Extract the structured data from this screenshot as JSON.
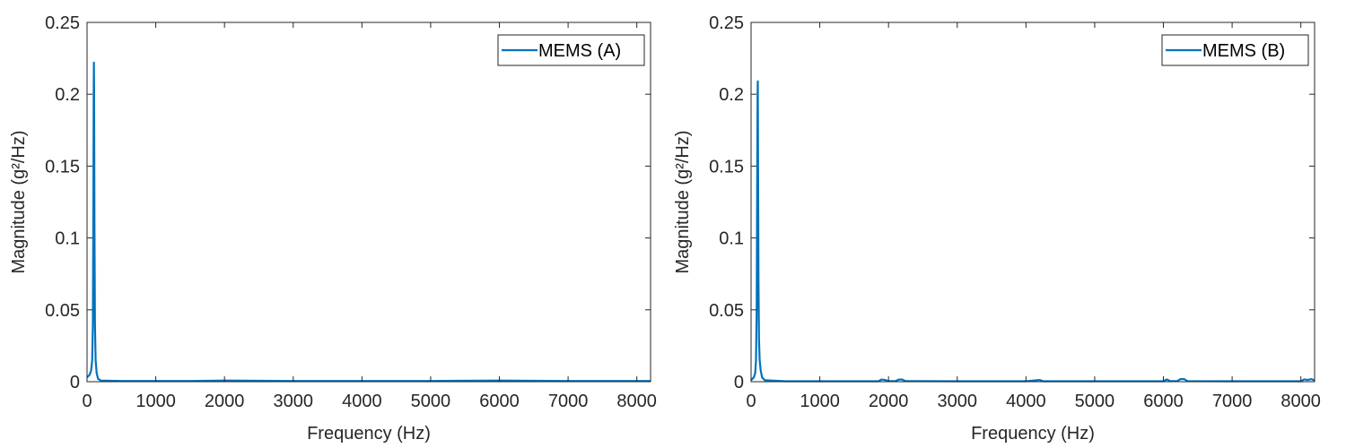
{
  "figure": {
    "background": "#ffffff",
    "series_color": "#0072BD",
    "axis_color": "#262626"
  },
  "chart_data": [
    {
      "type": "line",
      "xlabel": "Frequency (Hz)",
      "ylabel": "Magnitude (g²/Hz)",
      "xlim": [
        0,
        8200
      ],
      "ylim": [
        0,
        0.25
      ],
      "x_ticks": [
        0,
        1000,
        2000,
        3000,
        4000,
        5000,
        6000,
        7000,
        8000
      ],
      "y_ticks": [
        0,
        0.05,
        0.1,
        0.15,
        0.2,
        0.25
      ],
      "x_tick_labels": [
        "0",
        "1000",
        "2000",
        "3000",
        "4000",
        "5000",
        "6000",
        "7000",
        "8000"
      ],
      "y_tick_labels": [
        "0",
        "0.05",
        "0.1",
        "0.15",
        "0.2",
        "0.25"
      ],
      "grid": false,
      "legend_position": "top-right",
      "series": [
        {
          "name": "MEMS (A)",
          "x": [
            0,
            20,
            40,
            60,
            75,
            85,
            92,
            97,
            100,
            103,
            108,
            115,
            125,
            140,
            160,
            200,
            500,
            1000,
            1500,
            2000,
            3000,
            4000,
            5000,
            6000,
            7000,
            8000,
            8200
          ],
          "y": [
            0.003,
            0.004,
            0.005,
            0.008,
            0.015,
            0.04,
            0.12,
            0.2,
            0.222,
            0.2,
            0.11,
            0.04,
            0.015,
            0.006,
            0.002,
            0.0008,
            0.0005,
            0.0005,
            0.0005,
            0.0008,
            0.0005,
            0.0005,
            0.0005,
            0.0008,
            0.0005,
            0.0005,
            0.0005
          ]
        }
      ]
    },
    {
      "type": "line",
      "xlabel": "Frequency (Hz)",
      "ylabel": "Magnitude (g²/Hz)",
      "xlim": [
        0,
        8200
      ],
      "ylim": [
        0,
        0.25
      ],
      "x_ticks": [
        0,
        1000,
        2000,
        3000,
        4000,
        5000,
        6000,
        7000,
        8000
      ],
      "y_ticks": [
        0,
        0.05,
        0.1,
        0.15,
        0.2,
        0.25
      ],
      "x_tick_labels": [
        "0",
        "1000",
        "2000",
        "3000",
        "4000",
        "5000",
        "6000",
        "7000",
        "8000"
      ],
      "y_tick_labels": [
        "0",
        "0.05",
        "0.1",
        "0.15",
        "0.2",
        "0.25"
      ],
      "grid": false,
      "legend_position": "top-right",
      "series": [
        {
          "name": "MEMS (B)",
          "x": [
            0,
            20,
            40,
            60,
            72,
            82,
            90,
            95,
            98,
            102,
            108,
            115,
            125,
            140,
            160,
            200,
            500,
            1000,
            1500,
            1850,
            1900,
            1950,
            2000,
            2100,
            2150,
            2200,
            2250,
            3000,
            4000,
            4200,
            4250,
            5000,
            6000,
            6050,
            6100,
            6200,
            6250,
            6300,
            6350,
            7000,
            7500,
            8000,
            8050,
            8100,
            8150,
            8200
          ],
          "y": [
            0.001,
            0.002,
            0.003,
            0.006,
            0.015,
            0.05,
            0.15,
            0.2,
            0.209,
            0.15,
            0.07,
            0.03,
            0.015,
            0.008,
            0.003,
            0.001,
            0.0003,
            0.0003,
            0.0003,
            0.0003,
            0.0015,
            0.0012,
            0.0004,
            0.0004,
            0.0015,
            0.0015,
            0.0004,
            0.0003,
            0.0003,
            0.0012,
            0.0003,
            0.0003,
            0.0003,
            0.0016,
            0.0004,
            0.0004,
            0.0018,
            0.0018,
            0.0004,
            0.0003,
            0.0003,
            0.0003,
            0.0016,
            0.0012,
            0.0018,
            0.001
          ]
        }
      ]
    }
  ]
}
